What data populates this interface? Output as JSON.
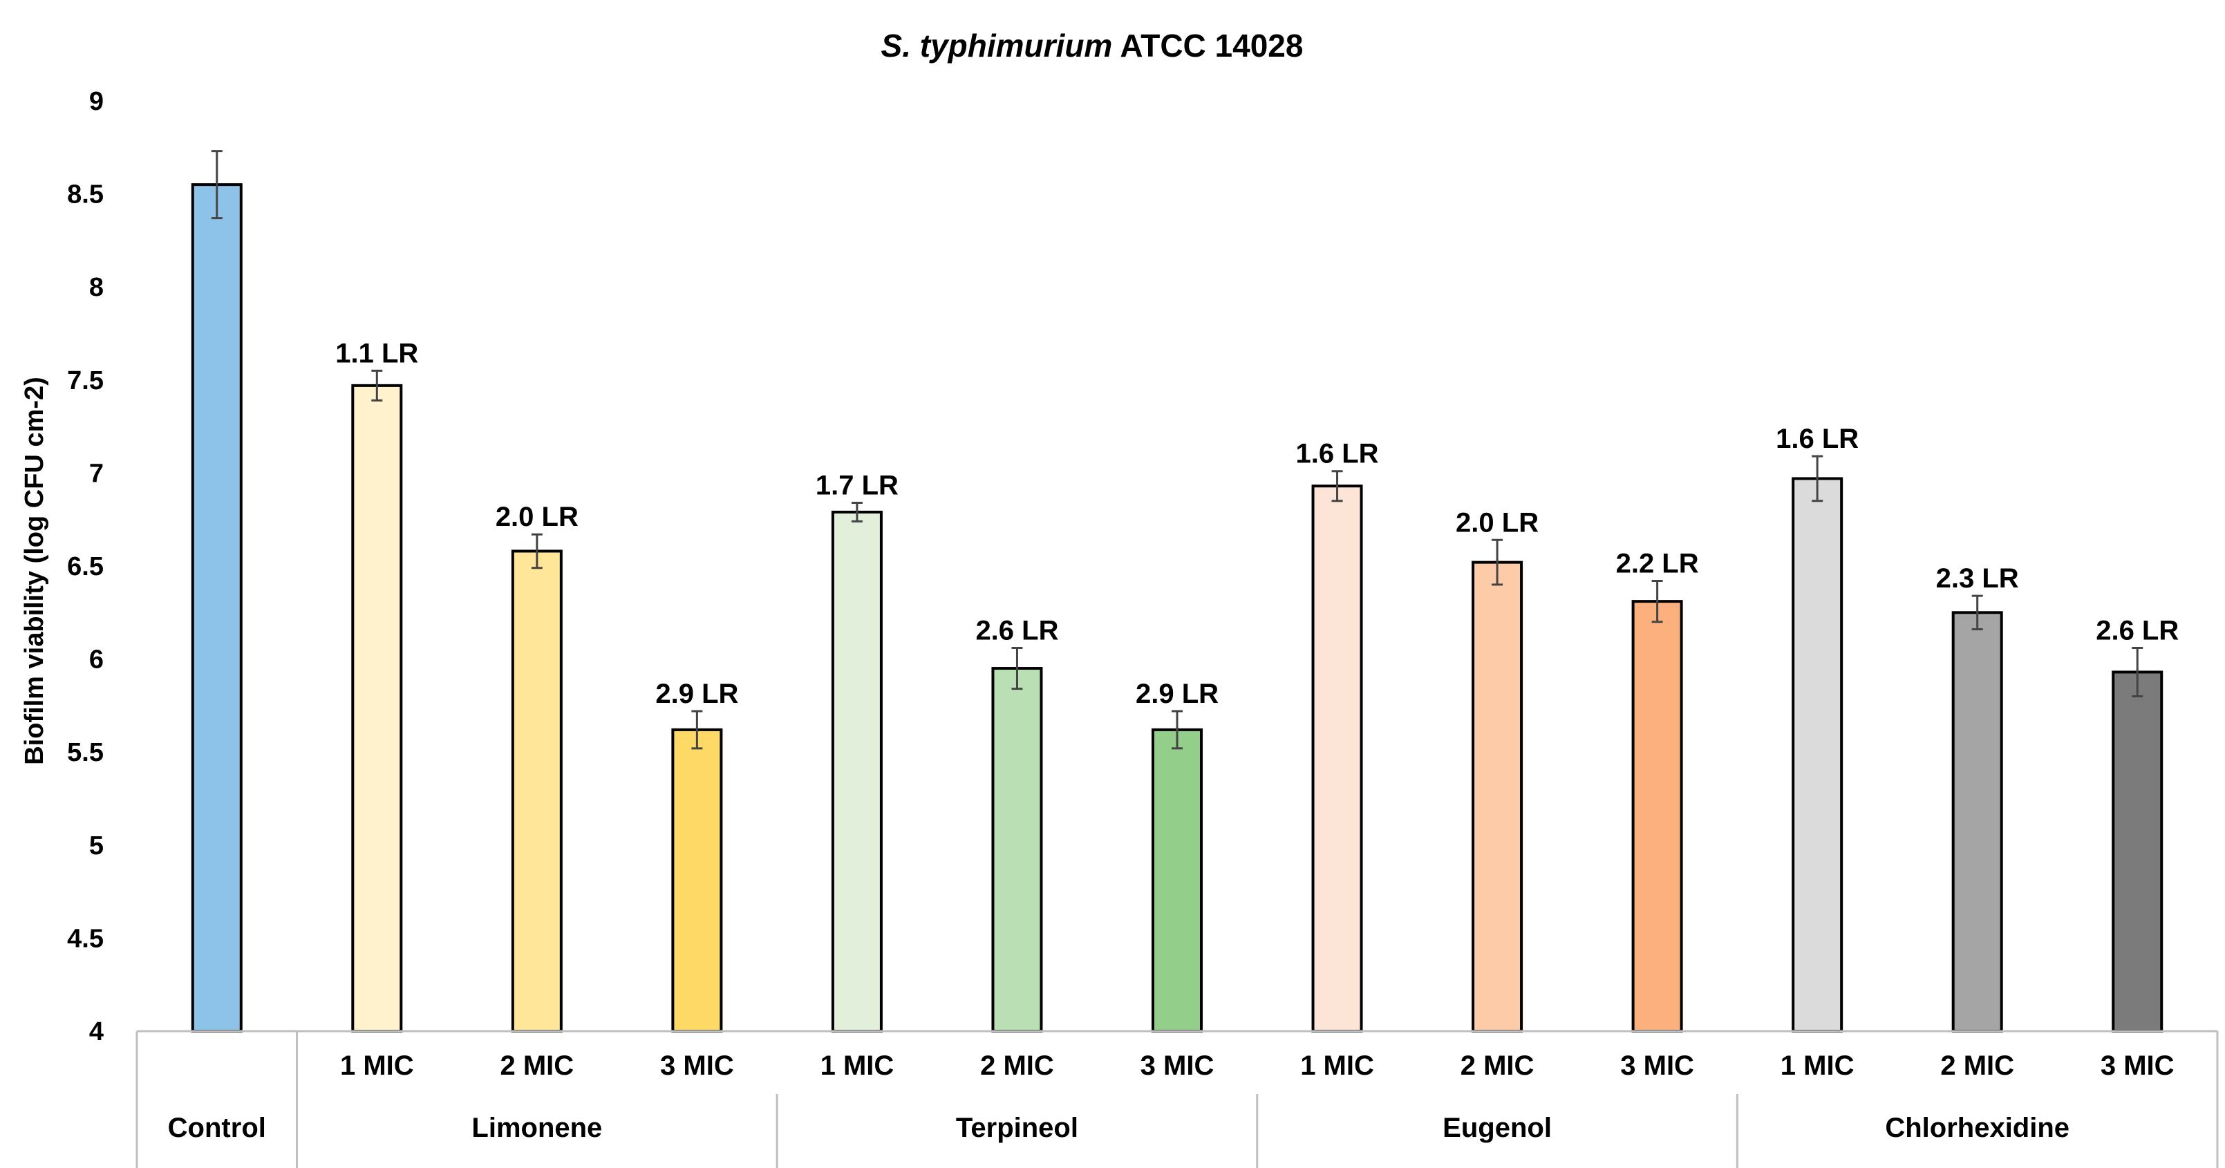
{
  "chart_data": {
    "type": "bar",
    "title_italic": "S. typhimurium",
    "title_rest": "ATCC 14028",
    "ylabel": "Biofilm viability (log CFU cm-2)",
    "xlabel": "",
    "ylim": [
      4,
      9
    ],
    "yticks": [
      "4",
      "4.5",
      "5",
      "5.5",
      "6",
      "6.5",
      "7",
      "7.5",
      "8",
      "8.5",
      "9"
    ],
    "grid": false,
    "legend": "none",
    "groups": [
      {
        "name": "Control",
        "bars": [
          {
            "label": "",
            "value": 8.55,
            "error": 0.18,
            "annotation": "",
            "color": "#8DC3E8"
          }
        ]
      },
      {
        "name": "Limonene",
        "bars": [
          {
            "label": "1 MIC",
            "value": 7.47,
            "error": 0.08,
            "annotation": "1.1 LR",
            "color": "#FFF2CC"
          },
          {
            "label": "2 MIC",
            "value": 6.58,
            "error": 0.09,
            "annotation": "2.0 LR",
            "color": "#FFE699"
          },
          {
            "label": "3 MIC",
            "value": 5.62,
            "error": 0.1,
            "annotation": "2.9 LR",
            "color": "#FFD966"
          }
        ]
      },
      {
        "name": "Terpineol",
        "bars": [
          {
            "label": "1 MIC",
            "value": 6.79,
            "error": 0.05,
            "annotation": "1.7 LR",
            "color": "#E2EFDA"
          },
          {
            "label": "2 MIC",
            "value": 5.95,
            "error": 0.11,
            "annotation": "2.6 LR",
            "color": "#BBDFB4"
          },
          {
            "label": "3 MIC",
            "value": 5.62,
            "error": 0.1,
            "annotation": "2.9 LR",
            "color": "#93CF8A"
          }
        ]
      },
      {
        "name": "Eugenol",
        "bars": [
          {
            "label": "1 MIC",
            "value": 6.93,
            "error": 0.08,
            "annotation": "1.6 LR",
            "color": "#FCE4D6"
          },
          {
            "label": "2 MIC",
            "value": 6.52,
            "error": 0.12,
            "annotation": "2.0 LR",
            "color": "#FDCBA8"
          },
          {
            "label": "3 MIC",
            "value": 6.31,
            "error": 0.11,
            "annotation": "2.2 LR",
            "color": "#FCB07E"
          }
        ]
      },
      {
        "name": "Chlorhexidine",
        "bars": [
          {
            "label": "1 MIC",
            "value": 6.97,
            "error": 0.12,
            "annotation": "1.6 LR",
            "color": "#DBDBDB"
          },
          {
            "label": "2 MIC",
            "value": 6.25,
            "error": 0.09,
            "annotation": "2.3 LR",
            "color": "#A5A5A5"
          },
          {
            "label": "3 MIC",
            "value": 5.93,
            "error": 0.13,
            "annotation": "2.6 LR",
            "color": "#7B7B7B"
          }
        ]
      }
    ]
  }
}
